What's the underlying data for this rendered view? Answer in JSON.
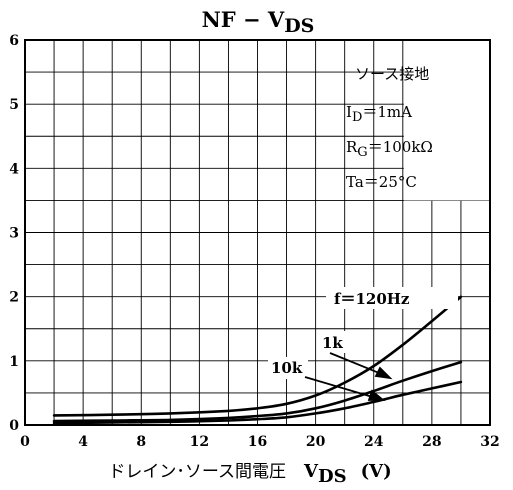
{
  "chart_data": {
    "type": "line",
    "title": {
      "main": "NF − V",
      "sub": "DS"
    },
    "xlabel": {
      "text": "ドレイン･ソース間電圧",
      "var": "V",
      "sub": "DS",
      "unit": "(V)"
    },
    "ylabel": "",
    "xlim": [
      0,
      32
    ],
    "ylim": [
      0,
      6
    ],
    "xticks": [
      "0",
      "4",
      "8",
      "12",
      "16",
      "20",
      "24",
      "28",
      "32"
    ],
    "yticks": [
      "0",
      "1",
      "2",
      "3",
      "4",
      "5",
      "6"
    ],
    "grid": true,
    "conditions": [
      {
        "id": "source",
        "text": "ソース接地"
      },
      {
        "id": "id",
        "main": "I",
        "sub": "D",
        "rest": "＝1mA"
      },
      {
        "id": "rg",
        "main": "R",
        "sub": "G",
        "rest": "＝100kΩ"
      },
      {
        "id": "ta",
        "text": "Ta＝25°C"
      }
    ],
    "series": [
      {
        "name": "f＝120Hz",
        "x": [
          2,
          6,
          10,
          14,
          16,
          18,
          20,
          22,
          24,
          26,
          28,
          30
        ],
        "y": [
          0.15,
          0.16,
          0.18,
          0.22,
          0.26,
          0.33,
          0.46,
          0.66,
          0.92,
          1.25,
          1.62,
          2.0
        ]
      },
      {
        "name": "1k",
        "x": [
          2,
          6,
          10,
          14,
          16,
          18,
          20,
          22,
          24,
          26,
          28,
          30
        ],
        "y": [
          0.06,
          0.07,
          0.08,
          0.11,
          0.14,
          0.18,
          0.26,
          0.38,
          0.53,
          0.69,
          0.84,
          0.98
        ]
      },
      {
        "name": "10k",
        "x": [
          2,
          6,
          10,
          14,
          16,
          18,
          20,
          22,
          24,
          26,
          28,
          30
        ],
        "y": [
          0.03,
          0.04,
          0.05,
          0.07,
          0.09,
          0.12,
          0.18,
          0.26,
          0.36,
          0.47,
          0.57,
          0.67
        ]
      }
    ],
    "colors": {
      "line": "#000000",
      "grid": "#000000",
      "background": "#ffffff"
    }
  }
}
